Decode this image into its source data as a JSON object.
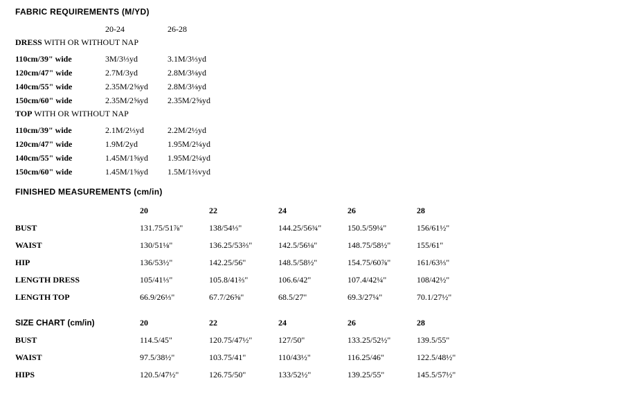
{
  "fabric": {
    "heading": "FABRIC REQUIREMENTS  (M/YD)",
    "size_header": [
      "20-24",
      "26-28"
    ],
    "dress_label_bold": "DRESS",
    "dress_label_rest": " WITH OR WITHOUT NAP",
    "top_label_bold": "TOP",
    "top_label_rest": " WITH OR WITHOUT NAP",
    "dress_rows": [
      {
        "w": "110cm/39\" wide",
        "a": "3M/3⅓yd",
        "b": "3.1M/3⅓yd"
      },
      {
        "w": "120cm/47\" wide",
        "a": "2.7M/3yd",
        "b": "2.8M/3⅛yd"
      },
      {
        "w": "140cm/55\" wide",
        "a": "2.35M/2⅝yd",
        "b": "2.8M/3⅛yd"
      },
      {
        "w": "150cm/60\" wide",
        "a": "2.35M/2⅝yd",
        "b": "2.35M/2⅝yd"
      }
    ],
    "top_rows": [
      {
        "w": "110cm/39\" wide",
        "a": "2.1M/2⅓yd",
        "b": "2.2M/2½yd"
      },
      {
        "w": "120cm/47\" wide",
        "a": "1.9M/2yd",
        "b": "1.95M/2¼yd"
      },
      {
        "w": "140cm/55\" wide",
        "a": "1.45M/1⅝yd",
        "b": "1.95M/2¼yd"
      },
      {
        "w": "150cm/60\" wide",
        "a": "1.45M/1⅝yd",
        "b": "1.5M/1⅔vyd"
      }
    ]
  },
  "finished": {
    "heading": "FINISHED MEASUREMENTS  (cm/in)",
    "sizes": [
      "20",
      "22",
      "24",
      "26",
      "28"
    ],
    "rows": [
      {
        "label": "BUST",
        "v": [
          "131.75/51⅞\"",
          "138/54⅓\"",
          "144.25/56¾\"",
          "150.5/59¼\"",
          "156/61½\""
        ]
      },
      {
        "label": "WAIST",
        "v": [
          "130/51⅛\"",
          "136.25/53⅔\"",
          "142.5/56⅛\"",
          "148.75/58½\"",
          "155/61\""
        ]
      },
      {
        "label": "HIP",
        "v": [
          "136/53½\"",
          "142.25/56\"",
          "148.5/58½\"",
          "154.75/60⅞\"",
          "161/63⅓\""
        ]
      },
      {
        "label": "LENGTH DRESS",
        "v": [
          "105/41⅓\"",
          "105.8/41⅔\"",
          "106.6/42\"",
          "107.4/42¼\"",
          "108/42½\""
        ]
      },
      {
        "label": "LENGTH TOP",
        "v": [
          "66.9/26⅓\"",
          "67.7/26⅝\"",
          "68.5/27\"",
          "69.3/27¼\"",
          "70.1/27½\""
        ]
      }
    ]
  },
  "sizechart": {
    "heading_label": "SIZE CHART",
    "heading_unit": " (cm/in)",
    "sizes": [
      "20",
      "22",
      "24",
      "26",
      "28"
    ],
    "rows": [
      {
        "label": "BUST",
        "v": [
          "114.5/45\"",
          "120.75/47½\"",
          "127/50\"",
          "133.25/52½\"",
          "139.5/55\""
        ]
      },
      {
        "label": "WAIST",
        "v": [
          "97.5/38½\"",
          "103.75/41\"",
          "110/43½\"",
          "116.25/46\"",
          "122.5/48½\""
        ]
      },
      {
        "label": "HIPS",
        "v": [
          "120.5/47½\"",
          "126.75/50\"",
          "133/52½\"",
          "139.25/55\"",
          "145.5/57½\""
        ]
      }
    ]
  }
}
